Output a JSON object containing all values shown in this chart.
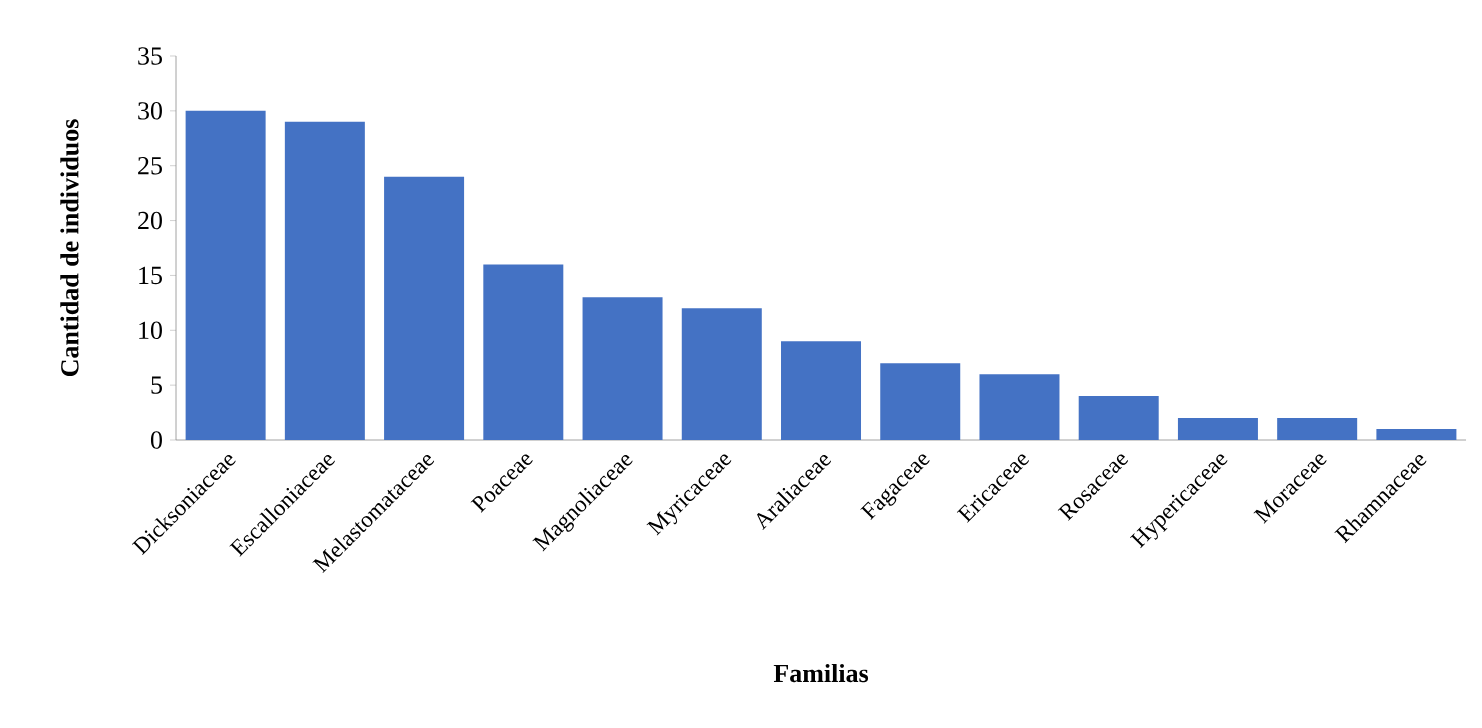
{
  "chart_data": {
    "type": "bar",
    "xlabel": "Familias",
    "ylabel": "Cantidad de individuos",
    "categories": [
      "Dicksoniaceae",
      "Escalloniaceae",
      "Melastomataceae",
      "Poaceae",
      "Magnoliaceae",
      "Myricaceae",
      "Araliaceae",
      "Fagaceae",
      "Ericaceae",
      "Rosaceae",
      "Hypericaceae",
      "Moraceae",
      "Rhamnaceae"
    ],
    "values": [
      30,
      29,
      24,
      16,
      13,
      12,
      9,
      7,
      6,
      4,
      2,
      2,
      1
    ],
    "color": "#4472c4",
    "ylim": [
      0,
      35
    ],
    "yticks": [
      0,
      5,
      10,
      15,
      20,
      25,
      30,
      35
    ]
  }
}
